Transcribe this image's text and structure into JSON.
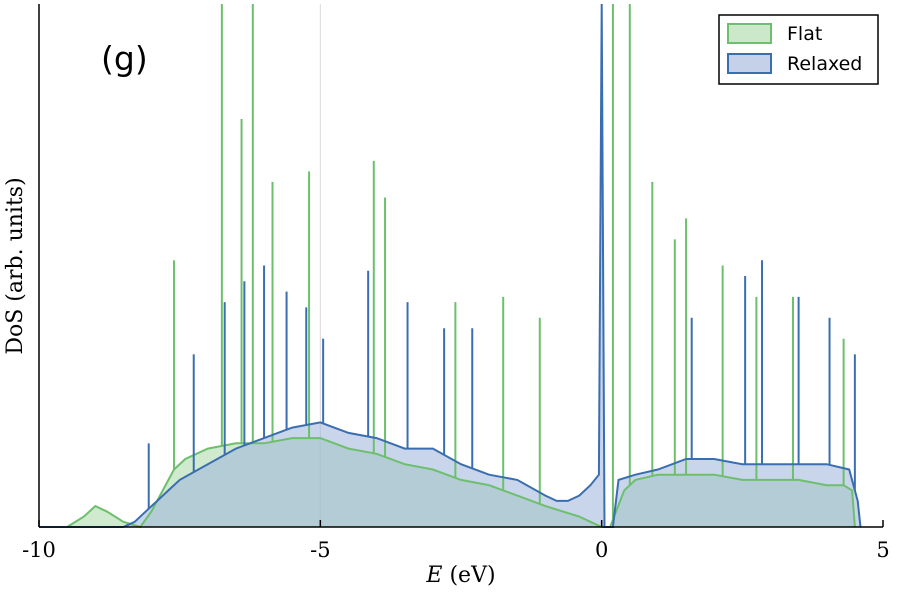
{
  "chart_data": {
    "type": "area",
    "panel_label": "(g)",
    "xlabel_italic": "E",
    "xlabel_rest": " (eV)",
    "ylabel": "DoS (arb. units)",
    "xlim": [
      -10,
      5
    ],
    "ylim": [
      0,
      1
    ],
    "xticks": [
      -10,
      -5,
      0,
      5
    ],
    "xtick_labels": [
      "-10",
      "-5",
      "0",
      "5"
    ],
    "yticks_shown": false,
    "vertical_gridline_at": -5,
    "legend": {
      "placement": "top-right"
    },
    "colors": {
      "flat_line": "#6dbf6d",
      "flat_fill": "#a9d9a9",
      "relaxed_line": "#3a6eb0",
      "relaxed_fill": "#9db3d9",
      "overlap_fill": "#b5cbcd"
    },
    "series": [
      {
        "name": "Flat",
        "x": [
          -10.0,
          -9.5,
          -9.2,
          -9.0,
          -8.8,
          -8.5,
          -8.2,
          -8.0,
          -7.8,
          -7.6,
          -7.4,
          -7.0,
          -6.5,
          -6.0,
          -5.5,
          -5.0,
          -4.5,
          -4.0,
          -3.5,
          -3.0,
          -2.5,
          -2.0,
          -1.5,
          -1.0,
          -0.7,
          -0.4,
          -0.2,
          0.0,
          0.15,
          0.4,
          0.6,
          1.0,
          1.5,
          2.0,
          2.5,
          3.0,
          3.5,
          4.0,
          4.3,
          4.45,
          4.5
        ],
        "values": [
          0.0,
          0.0,
          0.02,
          0.04,
          0.03,
          0.01,
          0.0,
          0.03,
          0.07,
          0.11,
          0.13,
          0.15,
          0.16,
          0.16,
          0.17,
          0.17,
          0.15,
          0.14,
          0.12,
          0.11,
          0.09,
          0.08,
          0.06,
          0.04,
          0.03,
          0.02,
          0.01,
          0.0,
          0.0,
          0.07,
          0.09,
          0.1,
          0.1,
          0.1,
          0.09,
          0.09,
          0.09,
          0.08,
          0.08,
          0.07,
          0.0
        ],
        "spikes": [
          [
            -7.6,
            0.51
          ],
          [
            -6.75,
            1.0
          ],
          [
            -6.4,
            0.78
          ],
          [
            -6.2,
            1.0
          ],
          [
            -5.85,
            0.66
          ],
          [
            -5.2,
            0.68
          ],
          [
            -4.05,
            0.7
          ],
          [
            -3.85,
            0.63
          ],
          [
            -2.6,
            0.43
          ],
          [
            -1.75,
            0.44
          ],
          [
            -1.1,
            0.4
          ],
          [
            0.2,
            1.0
          ],
          [
            0.5,
            1.0
          ],
          [
            0.9,
            0.66
          ],
          [
            1.5,
            0.59
          ],
          [
            1.3,
            0.55
          ],
          [
            2.15,
            0.5
          ],
          [
            2.75,
            0.44
          ],
          [
            3.4,
            0.44
          ],
          [
            4.3,
            0.36
          ]
        ]
      },
      {
        "name": "Relaxed",
        "x": [
          -10.0,
          -8.5,
          -8.3,
          -8.1,
          -7.9,
          -7.7,
          -7.5,
          -7.0,
          -6.5,
          -6.0,
          -5.5,
          -5.0,
          -4.5,
          -4.0,
          -3.5,
          -3.0,
          -2.5,
          -2.0,
          -1.5,
          -1.0,
          -0.8,
          -0.6,
          -0.4,
          -0.2,
          -0.05,
          0.0,
          0.05,
          0.2,
          0.3,
          0.6,
          1.0,
          1.5,
          2.0,
          2.5,
          3.0,
          3.5,
          4.0,
          4.4,
          4.55,
          4.6
        ],
        "values": [
          0.0,
          0.0,
          0.01,
          0.03,
          0.05,
          0.07,
          0.09,
          0.12,
          0.15,
          0.17,
          0.19,
          0.2,
          0.18,
          0.17,
          0.15,
          0.15,
          0.12,
          0.1,
          0.09,
          0.06,
          0.05,
          0.05,
          0.06,
          0.08,
          0.1,
          1.0,
          0.0,
          0.0,
          0.09,
          0.1,
          0.11,
          0.13,
          0.13,
          0.12,
          0.12,
          0.12,
          0.12,
          0.11,
          0.05,
          0.0
        ],
        "spikes": [
          [
            -8.05,
            0.16
          ],
          [
            -7.25,
            0.33
          ],
          [
            -6.7,
            0.43
          ],
          [
            -6.35,
            0.47
          ],
          [
            -6.0,
            0.5
          ],
          [
            -5.6,
            0.45
          ],
          [
            -5.25,
            0.42
          ],
          [
            -4.95,
            0.36
          ],
          [
            -4.15,
            0.49
          ],
          [
            -3.45,
            0.43
          ],
          [
            -2.8,
            0.38
          ],
          [
            -2.3,
            0.38
          ],
          [
            1.6,
            0.4
          ],
          [
            2.55,
            0.48
          ],
          [
            2.85,
            0.51
          ],
          [
            3.5,
            0.44
          ],
          [
            4.05,
            0.4
          ],
          [
            4.5,
            0.33
          ]
        ]
      }
    ]
  }
}
